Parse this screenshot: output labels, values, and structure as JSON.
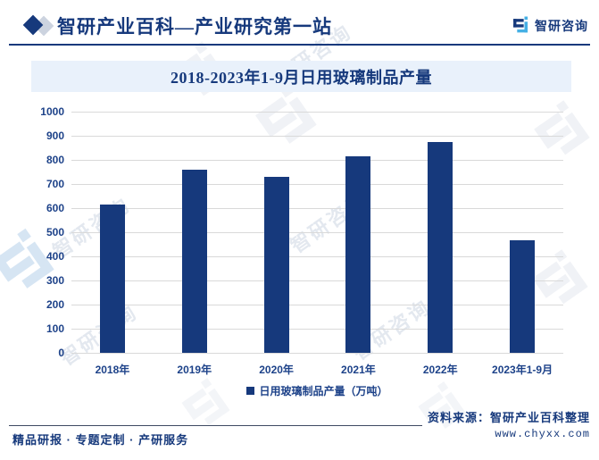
{
  "header": {
    "title": "智研产业百科—产业研究第一站",
    "brand": "智研咨询"
  },
  "banner": {
    "title": "2018-2023年1-9月日用玻璃制品产量"
  },
  "chart_data": {
    "type": "bar",
    "title": "2018-2023年1-9月日用玻璃制品产量",
    "categories": [
      "2018年",
      "2019年",
      "2020年",
      "2021年",
      "2022年",
      "2023年1-9月"
    ],
    "series": [
      {
        "name": "日用玻璃制品产量（万吨）",
        "values": [
          615,
          760,
          730,
          815,
          875,
          465
        ]
      }
    ],
    "xlabel": "",
    "ylabel": "",
    "ylim": [
      0,
      1000
    ],
    "ytick_step": 100,
    "grid": "horizontal",
    "legend_position": "bottom",
    "bar_color": "#16397c"
  },
  "footer": {
    "services": "精品研报 · 专题定制 · 产研服务",
    "source": "资料来源：智研产业百科整理",
    "website": "www.chyxx.com"
  },
  "watermark": {
    "text": "智研咨询"
  },
  "colors": {
    "accent": "#16397c",
    "axis_label": "#1d4289",
    "banner_bg": "#e9f1fb",
    "gridline": "#d9d9d9",
    "logo_teal": "#45b0e5"
  }
}
